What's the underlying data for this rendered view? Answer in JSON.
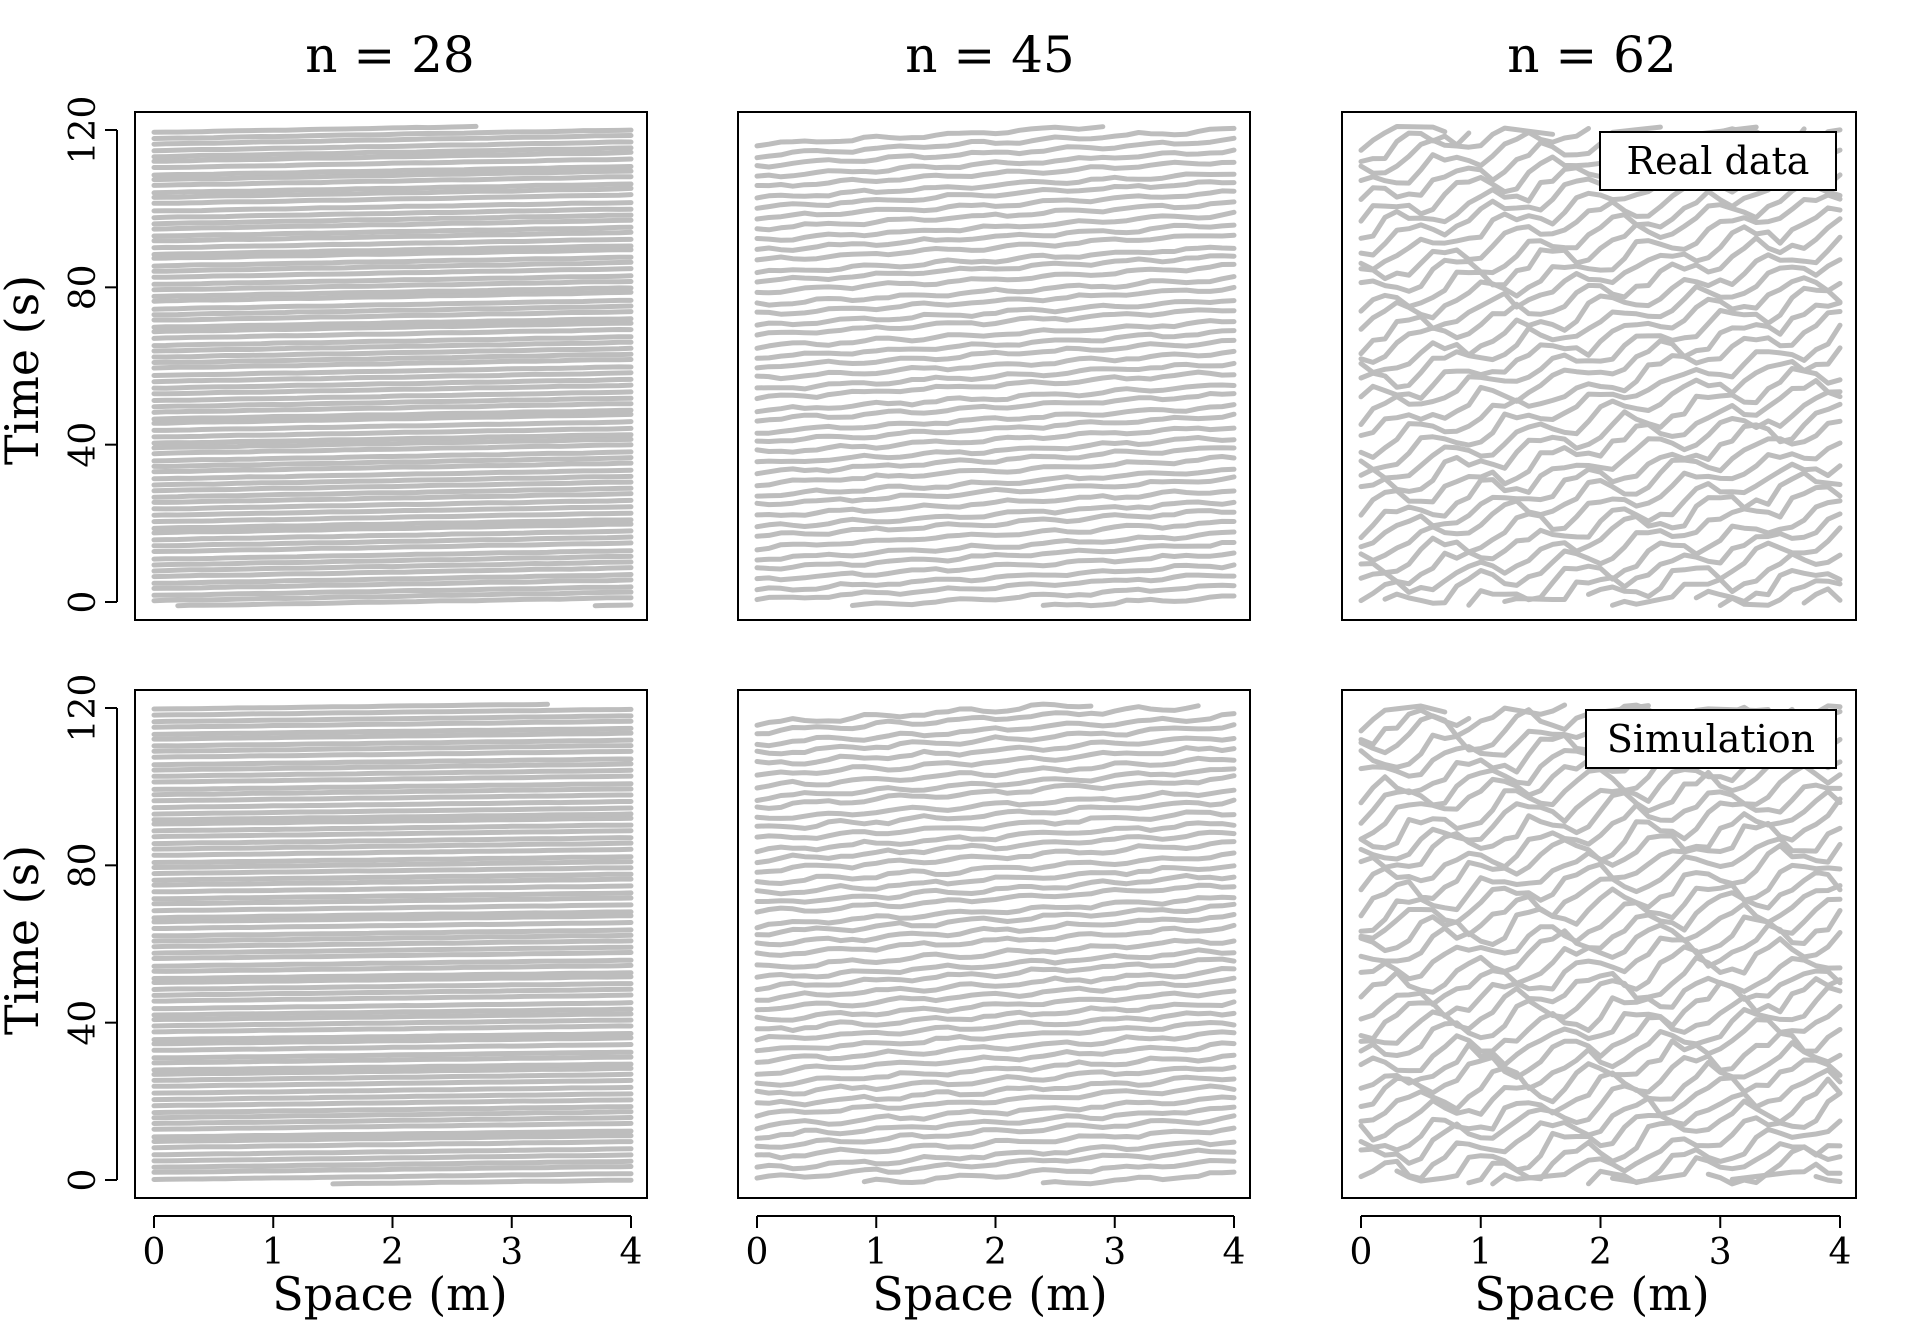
{
  "figure": {
    "column_titles": [
      "n = 28",
      "n = 45",
      "n = 62"
    ],
    "x_axis_label": "Space (m)",
    "y_axis_label": "Time (s)",
    "row_legends": [
      "Real data",
      "Simulation"
    ]
  },
  "chart_data": [
    {
      "type": "line",
      "row": "Real data",
      "n": 28,
      "xlabel": "Space (m)",
      "ylabel": "Time (s)",
      "xlim": [
        0,
        4
      ],
      "ylim": [
        0,
        120
      ],
      "x_ticks": [
        0,
        1,
        2,
        3,
        4
      ],
      "y_ticks": [
        0,
        40,
        80,
        120
      ],
      "series_color": "#bdbdbd",
      "trajectory": {
        "pass_time_s": 2.2,
        "start_spacing_s": 1.55,
        "count": 78,
        "wobble": 0.05
      }
    },
    {
      "type": "line",
      "row": "Real data",
      "n": 45,
      "xlabel": "Space (m)",
      "ylabel": "Time (s)",
      "xlim": [
        0,
        4
      ],
      "ylim": [
        0,
        120
      ],
      "x_ticks": [
        0,
        1,
        2,
        3,
        4
      ],
      "y_ticks": [
        0,
        40,
        80,
        120
      ],
      "series_color": "#bdbdbd",
      "trajectory": {
        "pass_time_s": 6.5,
        "start_spacing_s": 2.7,
        "count": 44,
        "wobble": 0.4
      }
    },
    {
      "type": "line",
      "row": "Real data",
      "n": 62,
      "xlabel": "Space (m)",
      "ylabel": "Time (s)",
      "xlim": [
        0,
        4
      ],
      "ylim": [
        0,
        120
      ],
      "x_ticks": [
        0,
        1,
        2,
        3,
        4
      ],
      "y_ticks": [
        0,
        40,
        80,
        120
      ],
      "series_color": "#bdbdbd",
      "legend": "Real data",
      "trajectory": {
        "pass_time_s": 32,
        "start_spacing_s": 3.9,
        "count": 32,
        "wobble": 2.2
      }
    },
    {
      "type": "line",
      "row": "Simulation",
      "n": 28,
      "xlabel": "Space (m)",
      "ylabel": "Time (s)",
      "xlim": [
        0,
        4
      ],
      "ylim": [
        0,
        120
      ],
      "x_ticks": [
        0,
        1,
        2,
        3,
        4
      ],
      "y_ticks": [
        0,
        40,
        80,
        120
      ],
      "series_color": "#bdbdbd",
      "trajectory": {
        "pass_time_s": 1.5,
        "start_spacing_s": 1.55,
        "count": 78,
        "wobble": 0.03
      }
    },
    {
      "type": "line",
      "row": "Simulation",
      "n": 45,
      "xlabel": "Space (m)",
      "ylabel": "Time (s)",
      "xlim": [
        0,
        4
      ],
      "ylim": [
        0,
        120
      ],
      "x_ticks": [
        0,
        1,
        2,
        3,
        4
      ],
      "y_ticks": [
        0,
        40,
        80,
        120
      ],
      "series_color": "#bdbdbd",
      "trajectory": {
        "pass_time_s": 7,
        "start_spacing_s": 2.7,
        "count": 44,
        "wobble": 0.5
      }
    },
    {
      "type": "line",
      "row": "Simulation",
      "n": 62,
      "xlabel": "Space (m)",
      "ylabel": "Time (s)",
      "xlim": [
        0,
        4
      ],
      "ylim": [
        0,
        120
      ],
      "x_ticks": [
        0,
        1,
        2,
        3,
        4
      ],
      "y_ticks": [
        0,
        40,
        80,
        120
      ],
      "series_color": "#bdbdbd",
      "legend": "Simulation",
      "trajectory": {
        "pass_time_s": 30,
        "start_spacing_s": 3.9,
        "count": 32,
        "wobble": 2.6
      }
    }
  ]
}
